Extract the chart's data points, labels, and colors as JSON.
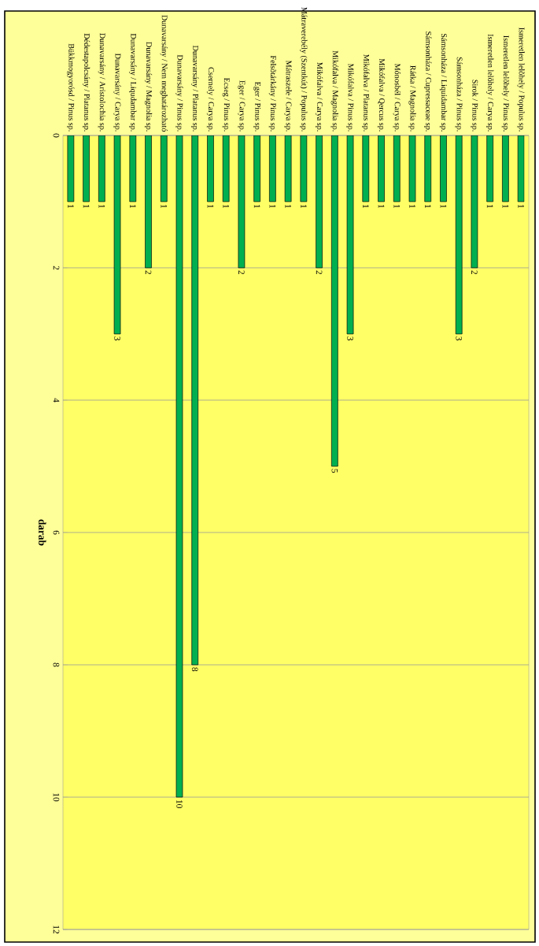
{
  "chart_data": {
    "type": "bar",
    "ylabel": "darab",
    "categories": [
      "Bükkmogyorósd / Pinus sp.",
      "Dédestapolcsány / Platanus sp.",
      "Dunavarsány / Aristolochia sp.",
      "Dunavarsány / Carya sp.",
      "Dunavarsány / Liqudambar sp.",
      "Dunavarsány / Magnolia sp.",
      "Dunavarsány / Nem meghatározható",
      "Dunavarsány / Pinus sp.",
      "Dunavarsány / Platanus sp.",
      "Csernely / Carya sp.",
      "Ecseg / Pinus sp.",
      "Eger / Carya sp.",
      "Eger / Pinus sp.",
      "Felsõtárkány / Pinus sp.",
      "Mátraszele / Carya sp.",
      "Mátraverebély (Szentkút) / Populus sp.",
      "Mikófalva / Carya sp.",
      "Mikófalva / Magnolia sp.",
      "Mikófalva / Pinus sp.",
      "Mikófalva / Platanus sp.",
      "Mikófalva / Qercus sp.",
      "Mónosbél / Carya sp.",
      "Rátka / Magnolia sp.",
      "Sámsonháza / Cupressaceae sp.",
      "Sámsonháza / Liquidambar sp.",
      "Sámsonháza / Pinus sp.",
      "Sirok / Pinus sp.",
      "Ismeretlen lelõhely / Carya sp.",
      "Ismeretlen lelõhely / Pinus sp.",
      "Ismeretlen lelõhely / Populus sp."
    ],
    "values": [
      1,
      1,
      1,
      3,
      1,
      2,
      1,
      10,
      8,
      1,
      1,
      2,
      1,
      1,
      1,
      1,
      2,
      5,
      3,
      1,
      1,
      1,
      1,
      1,
      1,
      3,
      2,
      1,
      1,
      1
    ],
    "color": "#00b050",
    "ylim": [
      12,
      0
    ],
    "yticks": [
      0,
      2,
      4,
      6,
      8,
      10,
      12
    ],
    "grid": "y",
    "data_labels": true
  }
}
